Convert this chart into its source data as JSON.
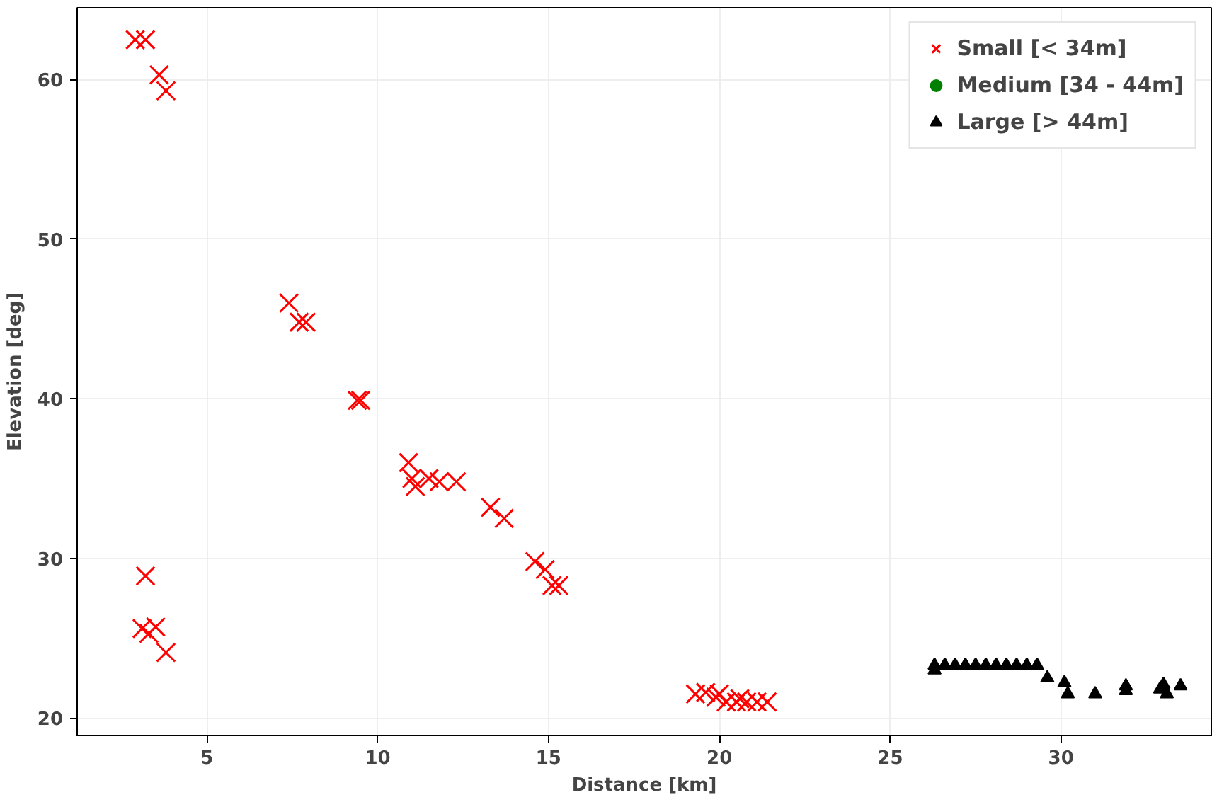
{
  "chart_data": {
    "type": "scatter",
    "xlabel": "Distance [km]",
    "ylabel": "Elevation [deg]",
    "xlim": [
      1.2,
      34.4
    ],
    "ylim": [
      18.9,
      64.5
    ],
    "xticks": [
      5,
      10,
      15,
      20,
      25,
      30
    ],
    "yticks": [
      20,
      30,
      40,
      50,
      60
    ],
    "grid": true,
    "legend": "top right",
    "series": [
      {
        "name": "Small [< 34m]",
        "color": "#ff0000",
        "marker": "cross",
        "x": [
          2.9,
          3.2,
          3.6,
          3.8,
          7.4,
          7.7,
          7.9,
          9.4,
          9.5,
          10.9,
          11.0,
          11.1,
          11.5,
          11.8,
          12.3,
          13.3,
          13.7,
          14.6,
          14.9,
          15.1,
          15.3,
          3.2,
          3.1,
          3.3,
          3.5,
          3.8,
          19.3,
          19.6,
          19.9,
          20.0,
          20.2,
          20.5,
          20.6,
          20.8,
          21.1,
          21.4
        ],
        "values": [
          62.5,
          62.5,
          60.3,
          59.3,
          46.0,
          44.8,
          44.8,
          39.9,
          39.9,
          36.0,
          35.0,
          34.5,
          35.0,
          34.8,
          34.8,
          33.2,
          32.5,
          29.8,
          29.3,
          28.3,
          28.3,
          28.9,
          25.6,
          25.3,
          25.7,
          24.1,
          21.5,
          21.6,
          21.3,
          21.5,
          21.0,
          21.0,
          21.2,
          21.0,
          21.0,
          21.0
        ]
      },
      {
        "name": "Medium [34 - 44m]",
        "color": "#008000",
        "marker": "circle"
      },
      {
        "name": "Large [> 44m]",
        "color": "#000000",
        "marker": "triangle",
        "x": [
          26.3,
          26.3,
          26.6,
          26.9,
          27.2,
          27.5,
          27.8,
          28.1,
          28.4,
          28.7,
          29.0,
          29.3,
          29.6,
          30.1,
          30.2,
          31.0,
          31.9,
          31.9,
          32.9,
          33.0,
          33.1,
          33.5
        ],
        "values": [
          23.0,
          23.3,
          23.3,
          23.3,
          23.3,
          23.3,
          23.3,
          23.3,
          23.3,
          23.3,
          23.3,
          23.3,
          22.5,
          22.2,
          21.5,
          21.5,
          21.7,
          22.0,
          21.8,
          22.1,
          21.5,
          22.0
        ]
      }
    ]
  }
}
